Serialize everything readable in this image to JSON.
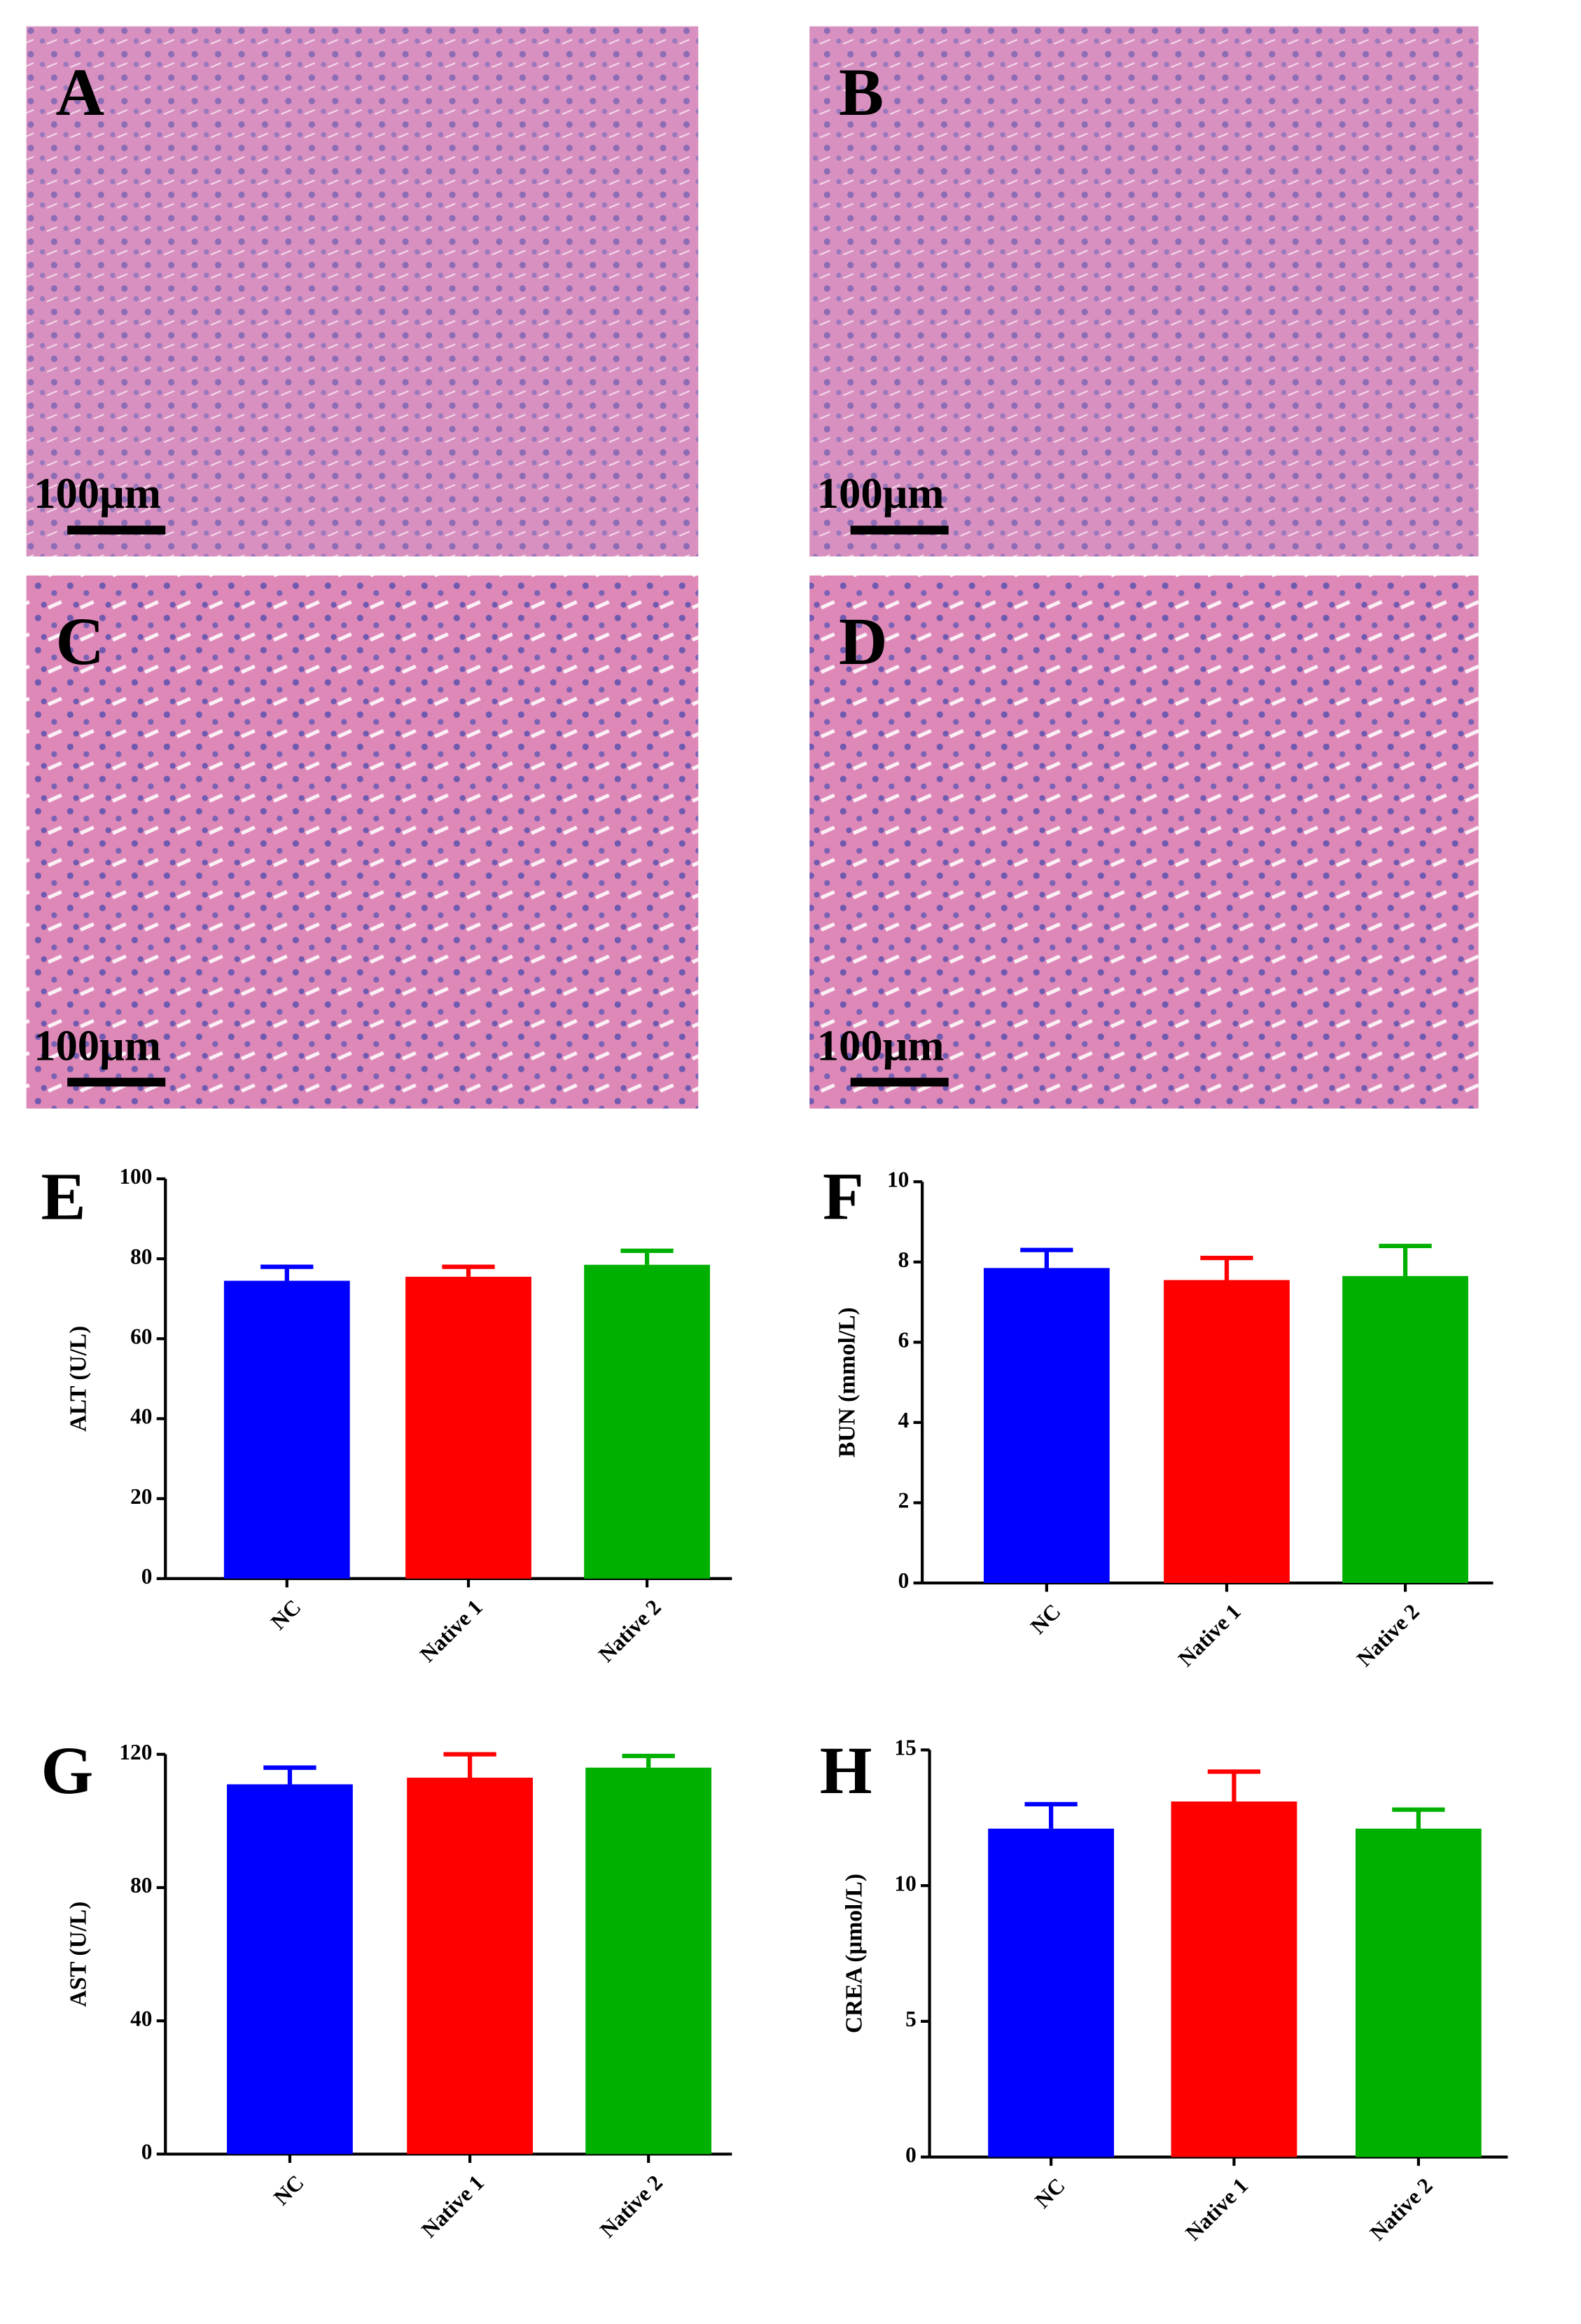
{
  "images": [
    {
      "panel": "A",
      "scale_bar": "100μm"
    },
    {
      "panel": "B",
      "scale_bar": "100μm"
    },
    {
      "panel": "C",
      "scale_bar": "100μm"
    },
    {
      "panel": "D",
      "scale_bar": "100μm"
    }
  ],
  "chart_data": [
    {
      "type": "bar",
      "panel": "E",
      "y_label": "ALT (U/L)",
      "categories": [
        "NC",
        "Native 1",
        "Native 2"
      ],
      "values": [
        74.5,
        75.5,
        78.5
      ],
      "errors": [
        3.5,
        2.5,
        3.5
      ],
      "colors": [
        "#0000ff",
        "#ff0000",
        "#00b000"
      ],
      "ylim": [
        0,
        100
      ],
      "yticks": [
        0,
        20,
        40,
        60,
        80,
        100
      ]
    },
    {
      "type": "bar",
      "panel": "F",
      "y_label": "BUN (mmol/L)",
      "categories": [
        "NC",
        "Native 1",
        "Native 2"
      ],
      "values": [
        7.85,
        7.55,
        7.65
      ],
      "errors": [
        0.45,
        0.55,
        0.75
      ],
      "colors": [
        "#0000ff",
        "#ff0000",
        "#00b000"
      ],
      "ylim": [
        0,
        10
      ],
      "yticks": [
        0,
        2,
        4,
        6,
        8,
        10
      ]
    },
    {
      "type": "bar",
      "panel": "G",
      "y_label": "AST (U/L)",
      "categories": [
        "NC",
        "Native 1",
        "Native 2"
      ],
      "values": [
        111,
        113,
        116
      ],
      "errors": [
        5,
        7,
        3.5
      ],
      "colors": [
        "#0000ff",
        "#ff0000",
        "#00b000"
      ],
      "ylim": [
        0,
        120
      ],
      "yticks": [
        0,
        40,
        80,
        120
      ]
    },
    {
      "type": "bar",
      "panel": "H",
      "y_label": "CREA (μmol/L)",
      "categories": [
        "NC",
        "Native 1",
        "Native 2"
      ],
      "values": [
        12.1,
        13.1,
        12.1
      ],
      "errors": [
        0.9,
        1.1,
        0.7
      ],
      "colors": [
        "#0000ff",
        "#ff0000",
        "#00b000"
      ],
      "ylim": [
        0,
        15
      ],
      "yticks": [
        0,
        5,
        10,
        15
      ]
    }
  ]
}
